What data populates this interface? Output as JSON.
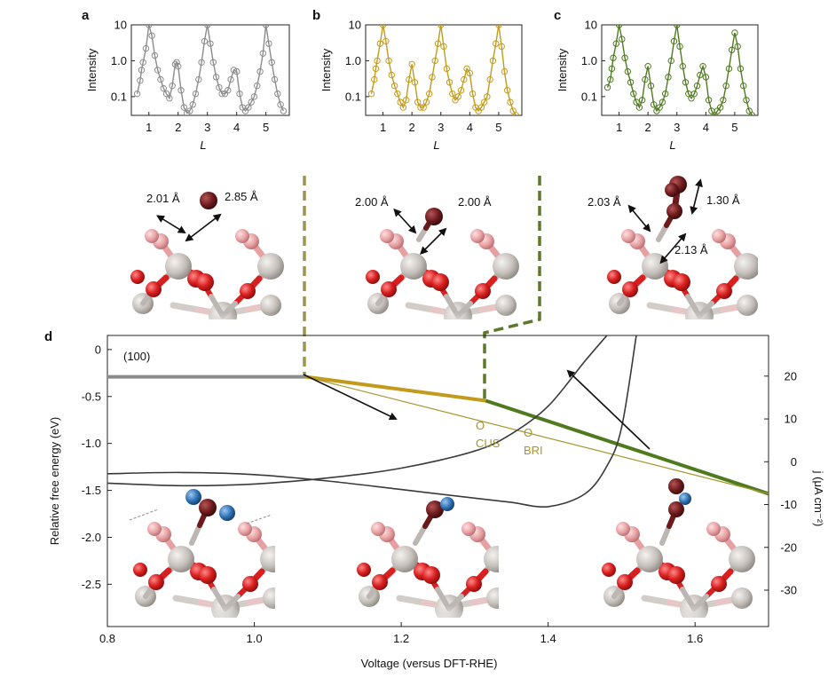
{
  "panels": {
    "a": "a",
    "b": "b",
    "c": "c",
    "d": "d"
  },
  "top_x_tick_labels": [
    "1",
    "2",
    "3",
    "4",
    "5"
  ],
  "top_y_tick_labels": [
    "10",
    "1.0",
    "0.1"
  ],
  "top_x_label": "L",
  "top_y_label": "Intensity",
  "colors": {
    "gray": "#8c8c8c",
    "gold": "#c39b1c",
    "green": "#507a20",
    "dark_line": "#3a3a3a",
    "olive_label": "#a5962c",
    "ti": "#c6c0bb",
    "o_red": "#d92020",
    "o_pink": "#e7a0a2",
    "adsorbate": "#6b1a1c",
    "n_blue": "#2d6fb3"
  },
  "structures": {
    "s1": {
      "d1": "2.01 Å",
      "d2": "2.85 Å"
    },
    "s2": {
      "d1": "2.00 Å",
      "d2": "2.00 Å"
    },
    "s3": {
      "d1": "2.03 Å",
      "d2": "1.30 Å",
      "d3": "2.13 Å"
    }
  },
  "chart_data": [
    {
      "panel": "a",
      "type": "scatter",
      "xlabel": "L",
      "ylabel": "Intensity",
      "yscale": "log",
      "xlim": [
        0.4,
        5.8
      ],
      "ylim": [
        0.03,
        10
      ],
      "series": [
        {
          "color": "#8c8c8c",
          "points": [
            [
              0.6,
              0.12
            ],
            [
              0.7,
              0.28
            ],
            [
              0.75,
              0.55
            ],
            [
              0.8,
              0.9
            ],
            [
              0.9,
              2.2
            ],
            [
              1.0,
              10
            ],
            [
              1.1,
              5.0
            ],
            [
              1.2,
              1.4
            ],
            [
              1.3,
              0.55
            ],
            [
              1.4,
              0.3
            ],
            [
              1.5,
              0.17
            ],
            [
              1.6,
              0.12
            ],
            [
              1.7,
              0.09
            ],
            [
              1.8,
              0.2
            ],
            [
              1.9,
              0.8
            ],
            [
              1.95,
              0.9
            ],
            [
              2.0,
              0.7
            ],
            [
              2.1,
              0.15
            ],
            [
              2.2,
              0.05
            ],
            [
              2.3,
              0.035
            ],
            [
              2.4,
              0.04
            ],
            [
              2.5,
              0.06
            ],
            [
              2.6,
              0.12
            ],
            [
              2.7,
              0.3
            ],
            [
              2.8,
              0.9
            ],
            [
              2.9,
              3.5
            ],
            [
              3.0,
              10
            ],
            [
              3.1,
              3.0
            ],
            [
              3.2,
              0.9
            ],
            [
              3.3,
              0.35
            ],
            [
              3.4,
              0.18
            ],
            [
              3.5,
              0.12
            ],
            [
              3.6,
              0.12
            ],
            [
              3.7,
              0.15
            ],
            [
              3.8,
              0.3
            ],
            [
              3.9,
              0.55
            ],
            [
              4.0,
              0.5
            ],
            [
              4.1,
              0.12
            ],
            [
              4.2,
              0.05
            ],
            [
              4.3,
              0.04
            ],
            [
              4.4,
              0.05
            ],
            [
              4.5,
              0.07
            ],
            [
              4.6,
              0.1
            ],
            [
              4.7,
              0.2
            ],
            [
              4.8,
              0.5
            ],
            [
              4.9,
              1.6
            ],
            [
              5.0,
              10
            ],
            [
              5.1,
              3.0
            ],
            [
              5.2,
              0.9
            ],
            [
              5.3,
              0.3
            ],
            [
              5.4,
              0.12
            ],
            [
              5.5,
              0.06
            ],
            [
              5.6,
              0.04
            ]
          ]
        }
      ]
    },
    {
      "panel": "b",
      "type": "scatter",
      "xlabel": "L",
      "ylabel": "Intensity",
      "yscale": "log",
      "xlim": [
        0.4,
        5.8
      ],
      "ylim": [
        0.03,
        10
      ],
      "series": [
        {
          "color": "#c39b1c",
          "points": [
            [
              0.6,
              0.12
            ],
            [
              0.7,
              0.3
            ],
            [
              0.75,
              0.6
            ],
            [
              0.8,
              1.0
            ],
            [
              0.9,
              3.0
            ],
            [
              1.0,
              10
            ],
            [
              1.1,
              3.5
            ],
            [
              1.2,
              1.0
            ],
            [
              1.3,
              0.4
            ],
            [
              1.4,
              0.2
            ],
            [
              1.5,
              0.12
            ],
            [
              1.6,
              0.07
            ],
            [
              1.7,
              0.05
            ],
            [
              1.8,
              0.08
            ],
            [
              1.9,
              0.3
            ],
            [
              2.0,
              0.8
            ],
            [
              2.1,
              0.25
            ],
            [
              2.2,
              0.07
            ],
            [
              2.3,
              0.05
            ],
            [
              2.4,
              0.05
            ],
            [
              2.5,
              0.07
            ],
            [
              2.6,
              0.12
            ],
            [
              2.7,
              0.35
            ],
            [
              2.8,
              1.0
            ],
            [
              2.9,
              3.0
            ],
            [
              3.0,
              10
            ],
            [
              3.1,
              2.5
            ],
            [
              3.2,
              0.6
            ],
            [
              3.3,
              0.25
            ],
            [
              3.4,
              0.12
            ],
            [
              3.5,
              0.08
            ],
            [
              3.6,
              0.1
            ],
            [
              3.7,
              0.15
            ],
            [
              3.8,
              0.3
            ],
            [
              3.9,
              0.6
            ],
            [
              4.0,
              0.45
            ],
            [
              4.1,
              0.12
            ],
            [
              4.2,
              0.05
            ],
            [
              4.3,
              0.04
            ],
            [
              4.4,
              0.05
            ],
            [
              4.5,
              0.07
            ],
            [
              4.6,
              0.1
            ],
            [
              4.7,
              0.3
            ],
            [
              4.8,
              1.0
            ],
            [
              4.9,
              3.0
            ],
            [
              5.0,
              10
            ],
            [
              5.1,
              2.5
            ],
            [
              5.2,
              0.5
            ],
            [
              5.3,
              0.15
            ],
            [
              5.4,
              0.07
            ],
            [
              5.5,
              0.04
            ],
            [
              5.6,
              0.03
            ]
          ]
        }
      ]
    },
    {
      "panel": "c",
      "type": "scatter",
      "xlabel": "L",
      "ylabel": "Intensity",
      "yscale": "log",
      "xlim": [
        0.4,
        5.8
      ],
      "ylim": [
        0.03,
        10
      ],
      "series": [
        {
          "color": "#507a20",
          "points": [
            [
              0.6,
              0.18
            ],
            [
              0.7,
              0.3
            ],
            [
              0.75,
              0.6
            ],
            [
              0.8,
              1.2
            ],
            [
              0.9,
              3.0
            ],
            [
              1.0,
              10
            ],
            [
              1.1,
              4.0
            ],
            [
              1.2,
              1.2
            ],
            [
              1.3,
              0.5
            ],
            [
              1.4,
              0.25
            ],
            [
              1.5,
              0.12
            ],
            [
              1.6,
              0.07
            ],
            [
              1.7,
              0.05
            ],
            [
              1.8,
              0.08
            ],
            [
              1.9,
              0.3
            ],
            [
              2.0,
              0.7
            ],
            [
              2.1,
              0.2
            ],
            [
              2.2,
              0.06
            ],
            [
              2.3,
              0.04
            ],
            [
              2.4,
              0.05
            ],
            [
              2.5,
              0.07
            ],
            [
              2.6,
              0.12
            ],
            [
              2.7,
              0.35
            ],
            [
              2.8,
              1.0
            ],
            [
              2.9,
              3.5
            ],
            [
              3.0,
              10
            ],
            [
              3.1,
              2.5
            ],
            [
              3.2,
              0.7
            ],
            [
              3.3,
              0.25
            ],
            [
              3.4,
              0.12
            ],
            [
              3.5,
              0.09
            ],
            [
              3.6,
              0.12
            ],
            [
              3.7,
              0.2
            ],
            [
              3.8,
              0.4
            ],
            [
              3.9,
              0.7
            ],
            [
              4.0,
              0.35
            ],
            [
              4.1,
              0.08
            ],
            [
              4.2,
              0.04
            ],
            [
              4.3,
              0.03
            ],
            [
              4.4,
              0.04
            ],
            [
              4.5,
              0.05
            ],
            [
              4.6,
              0.08
            ],
            [
              4.7,
              0.2
            ],
            [
              4.8,
              0.6
            ],
            [
              4.9,
              2.0
            ],
            [
              5.0,
              6.0
            ],
            [
              5.1,
              2.5
            ],
            [
              5.2,
              0.6
            ],
            [
              5.3,
              0.2
            ],
            [
              5.4,
              0.08
            ],
            [
              5.5,
              0.04
            ],
            [
              5.6,
              0.03
            ]
          ]
        }
      ]
    },
    {
      "panel": "d",
      "type": "line",
      "xlabel": "Voltage (versus DFT-RHE)",
      "ylabel": "Relative free energy (eV)",
      "y2label": "j (μA cm⁻²)",
      "xlim": [
        0.8,
        1.7
      ],
      "ylim": [
        -2.95,
        0.15
      ],
      "y2lim": [
        -38.5,
        29.5
      ],
      "xticks": [
        0.8,
        1.0,
        1.2,
        1.4,
        1.6
      ],
      "yticks": [
        0,
        -0.5,
        -1.0,
        -1.5,
        -2.0,
        -2.5
      ],
      "y2ticks": [
        20,
        10,
        0,
        -10,
        -20,
        -30
      ],
      "annotations": [
        "(100)",
        "O",
        "CUS",
        "O",
        "BRI"
      ],
      "series": [
        {
          "axis": "left",
          "color": "#8c8c8c",
          "x": [
            0.8,
            1.07
          ],
          "y": [
            -0.29,
            -0.29
          ]
        },
        {
          "axis": "left",
          "color": "#c39b1c",
          "x": [
            1.07,
            1.315
          ],
          "y": [
            -0.29,
            -0.545
          ]
        },
        {
          "axis": "left",
          "color": "#507a20",
          "x": [
            1.315,
            1.7
          ],
          "y": [
            -0.545,
            -1.535
          ]
        },
        {
          "axis": "left",
          "color": "#a5962c",
          "x": [
            1.07,
            1.7
          ],
          "y": [
            -0.29,
            -1.535
          ]
        },
        {
          "axis": "right",
          "color": "#3a3a3a",
          "x": [
            0.8,
            0.9,
            1.0,
            1.1,
            1.2,
            1.3,
            1.35,
            1.4,
            1.45,
            1.48
          ],
          "y": [
            -5.0,
            -5.6,
            -5.2,
            -3.8,
            -1.5,
            2.5,
            6.5,
            13.0,
            23.5,
            29.5
          ]
        },
        {
          "axis": "right",
          "color": "#3a3a3a",
          "x": [
            0.8,
            0.9,
            1.0,
            1.1,
            1.2,
            1.3,
            1.35,
            1.4,
            1.45,
            1.48,
            1.5,
            1.52
          ],
          "y": [
            -2.8,
            -2.5,
            -3.0,
            -4.5,
            -6.5,
            -8.5,
            -9.5,
            -10.5,
            -7.5,
            -1.0,
            8.0,
            29.5
          ]
        }
      ]
    }
  ]
}
